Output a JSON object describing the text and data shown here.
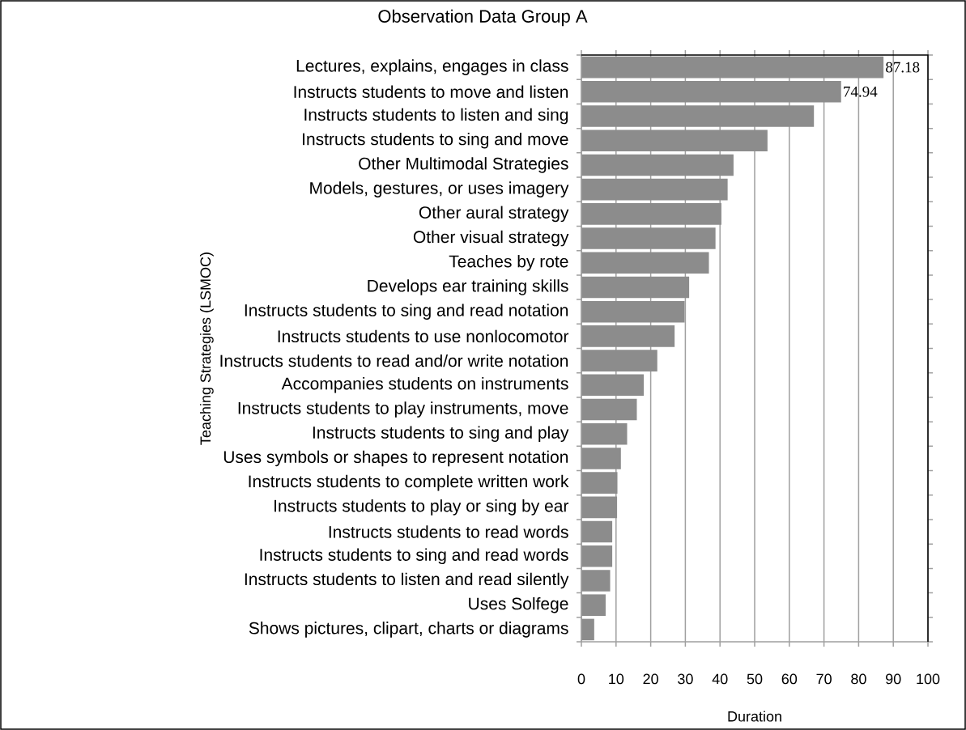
{
  "chart_data": {
    "type": "bar",
    "orientation": "horizontal",
    "title": "Observation Data Group A",
    "xlabel": "Duration",
    "ylabel": "Teaching Strategies (LSMOC)",
    "categories": [
      "Lectures, explains, engages in class",
      "Instructs students to move and listen",
      "Instructs students to listen and sing",
      "Instructs students to sing and move",
      "Other Multimodal Strategies",
      "Models, gestures, or uses imagery",
      "Other aural strategy",
      "Other visual strategy",
      "Teaches by rote",
      "Develops ear training skills",
      "Instructs students to sing and read notation",
      "Instructs students to use nonlocomotor",
      "Instructs students to read and/or write notation",
      "Accompanies students on instruments",
      "Instructs students to play instruments, move",
      "Instructs students to sing and play",
      "Uses symbols or shapes to represent notation",
      "Instructs students to complete written work",
      "Instructs students to play or sing by ear",
      "Instructs students to read words",
      "Instructs students to sing and read words",
      "Instructs students to listen and read silently",
      "Uses Solfege",
      "Shows pictures, clipart, charts or diagrams"
    ],
    "values": [
      87.18,
      74.94,
      67.1,
      53.7,
      43.9,
      42.2,
      40.4,
      38.7,
      36.8,
      31.1,
      29.8,
      26.9,
      21.9,
      18.0,
      16.0,
      13.2,
      11.4,
      10.4,
      10.3,
      8.9,
      8.9,
      8.3,
      7.0,
      3.7
    ],
    "value_labels": [
      "87.18",
      "74.94",
      null,
      null,
      null,
      null,
      null,
      null,
      null,
      null,
      null,
      null,
      null,
      null,
      null,
      null,
      null,
      null,
      null,
      null,
      null,
      null,
      null,
      null
    ],
    "color": "#8c8c8c",
    "xlim": [
      0,
      100
    ],
    "xticks": [
      0,
      10,
      20,
      30,
      40,
      50,
      60,
      70,
      80,
      90,
      100
    ],
    "grid": "x"
  }
}
